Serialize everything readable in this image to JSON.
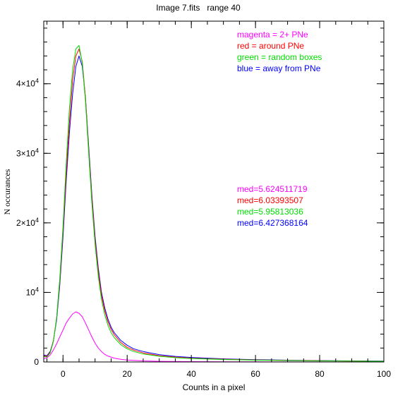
{
  "chart_data": {
    "type": "line",
    "title": "Image 7.fits   range 40",
    "xlabel": "Counts in a pixel",
    "ylabel": "N occurances",
    "xlim": [
      -6,
      100
    ],
    "ylim": [
      0,
      49000
    ],
    "grid": false,
    "x_ticks": [
      {
        "value": 0,
        "label": "0"
      },
      {
        "value": 20,
        "label": "20"
      },
      {
        "value": 40,
        "label": "40"
      },
      {
        "value": 60,
        "label": "60"
      },
      {
        "value": 80,
        "label": "80"
      },
      {
        "value": 100,
        "label": "100"
      }
    ],
    "y_ticks": [
      {
        "value": 0,
        "label": "0",
        "base": "0",
        "exp": ""
      },
      {
        "value": 10000,
        "label": "10^4",
        "base": "10",
        "exp": "4"
      },
      {
        "value": 20000,
        "label": "2×10^4",
        "base": "2×10",
        "exp": "4"
      },
      {
        "value": 30000,
        "label": "3×10^4",
        "base": "3×10",
        "exp": "4"
      },
      {
        "value": 40000,
        "label": "4×10^4",
        "base": "4×10",
        "exp": "4"
      }
    ],
    "x_minor_step": 5,
    "y_minor_step": 2000,
    "legend_position": "top-right",
    "legend": [
      {
        "text": "magenta = 2+ PNe",
        "color": "#ff00ff"
      },
      {
        "text": "red = around PNe",
        "color": "#ff0000"
      },
      {
        "text": "green = random boxes",
        "color": "#00dd00"
      },
      {
        "text": "blue = away from PNe",
        "color": "#0000ff"
      }
    ],
    "medians": [
      {
        "text": "med=5.624511719",
        "color": "#ff00ff"
      },
      {
        "text": "med=6.03393507",
        "color": "#ff0000"
      },
      {
        "text": "med=5.95813036",
        "color": "#00dd00"
      },
      {
        "text": "med=6.427368164",
        "color": "#0000ff"
      }
    ],
    "series": [
      {
        "name": "blue = away from PNe",
        "color": "#0000ff",
        "x": [
          -6,
          -5,
          -4,
          -3,
          -2,
          -1,
          0,
          1,
          2,
          3,
          4,
          5,
          6,
          7,
          8,
          9,
          10,
          11,
          12,
          13,
          14,
          15,
          16,
          18,
          20,
          22,
          25,
          30,
          35,
          40,
          50,
          60,
          70,
          80,
          90,
          100
        ],
        "y": [
          1000,
          900,
          1500,
          3000,
          6000,
          11000,
          18000,
          26000,
          33000,
          38500,
          42500,
          44000,
          42500,
          38000,
          31000,
          24000,
          18000,
          13500,
          10000,
          7800,
          6200,
          5000,
          4200,
          3100,
          2400,
          1900,
          1500,
          1050,
          800,
          650,
          450,
          330,
          250,
          190,
          150,
          120
        ]
      },
      {
        "name": "red = around PNe",
        "color": "#ff0000",
        "x": [
          -6,
          -5,
          -4,
          -3,
          -2,
          -1,
          0,
          1,
          2,
          3,
          4,
          5,
          6,
          7,
          8,
          9,
          10,
          11,
          12,
          13,
          14,
          15,
          16,
          18,
          20,
          22,
          25,
          30,
          35,
          40,
          50,
          60,
          70,
          80,
          90,
          100
        ],
        "y": [
          900,
          800,
          1400,
          3000,
          6300,
          11500,
          18800,
          27000,
          34500,
          40500,
          44000,
          45000,
          43200,
          38000,
          30500,
          23500,
          17500,
          13000,
          9600,
          7400,
          5800,
          4700,
          3900,
          2800,
          2100,
          1700,
          1300,
          900,
          700,
          550,
          400,
          290,
          220,
          170,
          130,
          100
        ]
      },
      {
        "name": "green = random boxes",
        "color": "#00dd00",
        "x": [
          -6,
          -5,
          -4,
          -3,
          -2,
          -1,
          0,
          1,
          2,
          3,
          4,
          5,
          6,
          7,
          8,
          9,
          10,
          11,
          12,
          13,
          14,
          15,
          16,
          18,
          20,
          22,
          25,
          30,
          35,
          40,
          50,
          60,
          70,
          80,
          90,
          100
        ],
        "y": [
          800,
          700,
          1300,
          2900,
          6300,
          12000,
          19500,
          28500,
          36500,
          42000,
          45000,
          45500,
          43000,
          37500,
          30000,
          22800,
          16800,
          12300,
          9000,
          6800,
          5300,
          4200,
          3500,
          2500,
          1900,
          1500,
          1150,
          820,
          620,
          500,
          360,
          260,
          200,
          150,
          120,
          90
        ]
      },
      {
        "name": "magenta = 2+ PNe",
        "color": "#ff00ff",
        "x": [
          -6,
          -5,
          -4,
          -3,
          -2,
          -1,
          0,
          1,
          2,
          3,
          4,
          5,
          6,
          7,
          8,
          9,
          10,
          11,
          12,
          13,
          14,
          16,
          18,
          20,
          25,
          30,
          40,
          50,
          60,
          80,
          100
        ],
        "y": [
          500,
          600,
          1000,
          1700,
          2600,
          3600,
          4600,
          5600,
          6300,
          6900,
          7200,
          7000,
          6500,
          5600,
          4600,
          3600,
          2700,
          2000,
          1500,
          1100,
          850,
          550,
          380,
          280,
          150,
          90,
          50,
          30,
          20,
          10,
          5
        ]
      }
    ]
  }
}
